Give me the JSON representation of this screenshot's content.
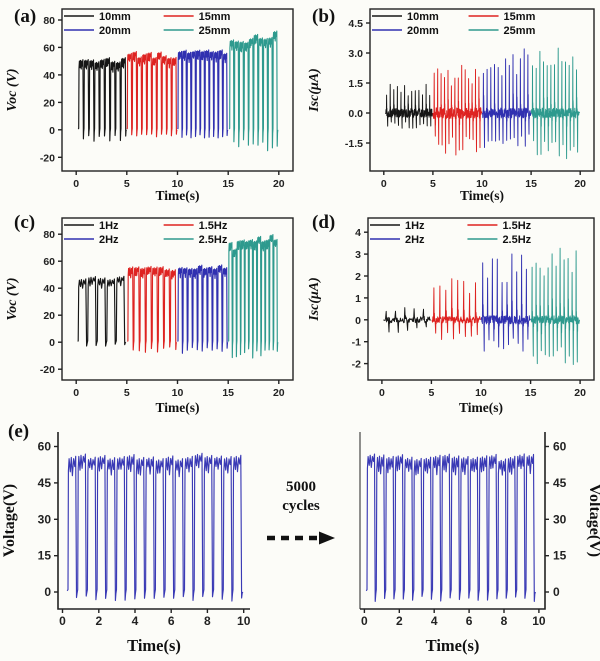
{
  "colors": {
    "black": "#161616",
    "red": "#de2321",
    "blue": "#3030b0",
    "teal": "#2e9a8e",
    "durability_blue": "#3a3ab5",
    "axis": "#222222",
    "background": "#fcfcf8"
  },
  "panels": {
    "a": {
      "letter": "(a)"
    },
    "b": {
      "letter": "(b)"
    },
    "c": {
      "letter": "(c)"
    },
    "d": {
      "letter": "(d)"
    },
    "e": {
      "letter": "(e)"
    }
  },
  "annotation": {
    "line1": "5000",
    "line2": "cycles",
    "arrow": "dashed-right-arrow"
  },
  "chart_data": [
    {
      "id": "a",
      "type": "line",
      "title": "Open-circuit voltage vs time for different displacements",
      "xlabel": "Time(s)",
      "ylabel": "Voc (V)",
      "ylabel_italic": true,
      "xlim": [
        -1.4,
        21.4
      ],
      "ylim": [
        -30,
        88
      ],
      "xticks": [
        0,
        5,
        10,
        15,
        20
      ],
      "xtick_labels": [
        "0",
        "5",
        "10",
        "15",
        "20"
      ],
      "yticks": [
        -20,
        0,
        20,
        40,
        60,
        80
      ],
      "ytick_labels": [
        "-20",
        "0",
        "20",
        "40",
        "60",
        "80"
      ],
      "frame": "box",
      "grid": false,
      "legend": {
        "position": "top-inside",
        "items": [
          {
            "label": "10mm",
            "color": "#161616"
          },
          {
            "label": "15mm",
            "color": "#de2321"
          },
          {
            "label": "20mm",
            "color": "#3030b0"
          },
          {
            "label": "25mm",
            "color": "#2e9a8e"
          }
        ]
      },
      "series": [
        {
          "name": "10mm",
          "color": "#161616",
          "kind": "voltage",
          "t0": 0.25,
          "t1": 4.95,
          "pulses": 9,
          "top": 50,
          "topvar": 2.2,
          "notch": -7,
          "seed": 11
        },
        {
          "name": "15mm",
          "color": "#de2321",
          "kind": "voltage",
          "t0": 5.05,
          "t1": 9.95,
          "pulses": 10,
          "top": 54,
          "topvar": 2.5,
          "notch": -5,
          "seed": 22
        },
        {
          "name": "20mm",
          "color": "#3030b0",
          "kind": "voltage",
          "t0": 10.05,
          "t1": 14.95,
          "pulses": 11,
          "top": 56,
          "topvar": 1.5,
          "notch": -5,
          "seed": 33
        },
        {
          "name": "25mm",
          "color": "#2e9a8e",
          "kind": "voltage",
          "t0": 15.15,
          "t1": 19.9,
          "pulses": 10,
          "top": 63,
          "top2": 69,
          "topvar": 2.2,
          "notch": -13,
          "seed": 44
        }
      ]
    },
    {
      "id": "b",
      "type": "line",
      "title": "Short-circuit current vs time for different displacements",
      "xlabel": "Time(s)",
      "ylabel": "Isc(μA)",
      "ylabel_italic": true,
      "xlim": [
        -1.4,
        21.4
      ],
      "ylim": [
        -2.9,
        5.2
      ],
      "xticks": [
        0,
        5,
        10,
        15,
        20
      ],
      "xtick_labels": [
        "0",
        "5",
        "10",
        "15",
        "20"
      ],
      "yticks": [
        -1.5,
        0,
        1.5,
        3,
        4.5
      ],
      "ytick_labels": [
        "-1.5",
        "0.0",
        "1.5",
        "3.0",
        "4.5"
      ],
      "frame": "box",
      "grid": false,
      "legend": {
        "position": "top-inside",
        "items": [
          {
            "label": "10mm",
            "color": "#161616"
          },
          {
            "label": "15mm",
            "color": "#de2321"
          },
          {
            "label": "20mm",
            "color": "#3030b0"
          },
          {
            "label": "25mm",
            "color": "#2e9a8e"
          }
        ]
      },
      "series": [
        {
          "name": "10mm",
          "color": "#161616",
          "kind": "current",
          "t0": 0.2,
          "t1": 4.95,
          "pulses": 13,
          "pos": 1.55,
          "neg": -0.8,
          "base": 0.45,
          "seed": 55
        },
        {
          "name": "15mm",
          "color": "#de2321",
          "kind": "current",
          "t0": 5.05,
          "t1": 9.95,
          "pulses": 14,
          "pos": 2.45,
          "neg": -2.1,
          "base": 0.55,
          "seed": 66
        },
        {
          "name": "20mm",
          "color": "#3030b0",
          "kind": "current",
          "t0": 10.05,
          "t1": 14.95,
          "pulses": 13,
          "pos": 3.3,
          "neg": -1.8,
          "base": 0.5,
          "seed": 77
        },
        {
          "name": "25mm",
          "color": "#2e9a8e",
          "kind": "current",
          "t0": 15.05,
          "t1": 19.9,
          "pulses": 13,
          "pos": 3.3,
          "neg": -2.3,
          "base": 0.5,
          "seed": 88
        }
      ]
    },
    {
      "id": "c",
      "type": "line",
      "title": "Open-circuit voltage vs time for different frequencies",
      "xlabel": "Time(s)",
      "ylabel": "Voc (V)",
      "ylabel_italic": true,
      "xlim": [
        -1.4,
        21.4
      ],
      "ylim": [
        -28,
        92
      ],
      "xticks": [
        0,
        5,
        10,
        15,
        20
      ],
      "xtick_labels": [
        "0",
        "5",
        "10",
        "15",
        "20"
      ],
      "yticks": [
        -20,
        0,
        20,
        40,
        60,
        80
      ],
      "ytick_labels": [
        "-20",
        "0",
        "20",
        "40",
        "60",
        "80"
      ],
      "frame": "box",
      "grid": false,
      "legend": {
        "position": "top-inside",
        "items": [
          {
            "label": "1Hz",
            "color": "#161616"
          },
          {
            "label": "1.5Hz",
            "color": "#de2321"
          },
          {
            "label": "2Hz",
            "color": "#3030b0"
          },
          {
            "label": "2.5Hz",
            "color": "#2e9a8e"
          }
        ]
      },
      "series": [
        {
          "name": "1Hz",
          "color": "#161616",
          "kind": "voltage",
          "t0": 0.2,
          "t1": 4.9,
          "pulses": 5,
          "top": 47,
          "topvar": 1.5,
          "notch": -2.5,
          "seed": 101
        },
        {
          "name": "1.5Hz",
          "color": "#de2321",
          "kind": "voltage",
          "t0": 5.1,
          "t1": 9.9,
          "pulses": 8,
          "top": 54,
          "topvar": 1.8,
          "notch": -6,
          "seed": 102
        },
        {
          "name": "2Hz",
          "color": "#3030b0",
          "kind": "voltage",
          "t0": 10.05,
          "t1": 14.95,
          "pulses": 10,
          "top": 55,
          "topvar": 1.5,
          "notch": -6.5,
          "seed": 103
        },
        {
          "name": "2.5Hz",
          "color": "#2e9a8e",
          "kind": "voltage",
          "t0": 15.05,
          "t1": 19.9,
          "pulses": 12,
          "top": 70,
          "top2": 78,
          "topvar": 3,
          "notch": -9,
          "seed": 104
        }
      ]
    },
    {
      "id": "d",
      "type": "line",
      "title": "Short-circuit current vs time for different frequencies",
      "xlabel": "Time(s)",
      "ylabel": "Isc(μA)",
      "ylabel_italic": true,
      "xlim": [
        -1.4,
        21.4
      ],
      "ylim": [
        -2.75,
        4.65
      ],
      "xticks": [
        0,
        5,
        10,
        15,
        20
      ],
      "xtick_labels": [
        "0",
        "5",
        "10",
        "15",
        "20"
      ],
      "yticks": [
        -2,
        -1,
        0,
        1,
        2,
        3,
        4
      ],
      "ytick_labels": [
        "-2",
        "-1",
        "0",
        "1",
        "2",
        "3",
        "4"
      ],
      "frame": "box",
      "grid": false,
      "legend": {
        "position": "top-inside",
        "items": [
          {
            "label": "1Hz",
            "color": "#161616"
          },
          {
            "label": "1.5Hz",
            "color": "#de2321"
          },
          {
            "label": "2Hz",
            "color": "#3030b0"
          },
          {
            "label": "2.5Hz",
            "color": "#2e9a8e"
          }
        ]
      },
      "series": [
        {
          "name": "1Hz",
          "color": "#161616",
          "kind": "current",
          "t0": 0.2,
          "t1": 4.9,
          "pulses": 5,
          "pos": 0.68,
          "neg": -0.58,
          "base": 0.28,
          "seed": 201
        },
        {
          "name": "1.5Hz",
          "color": "#de2321",
          "kind": "current",
          "t0": 5.1,
          "t1": 9.9,
          "pulses": 8,
          "pos": 2.05,
          "neg": -0.95,
          "base": 0.3,
          "seed": 202
        },
        {
          "name": "2Hz",
          "color": "#3030b0",
          "kind": "current",
          "t0": 10.05,
          "t1": 14.95,
          "pulses": 10,
          "pos": 3.05,
          "neg": -1.45,
          "base": 0.38,
          "seed": 203
        },
        {
          "name": "2.5Hz",
          "color": "#2e9a8e",
          "kind": "current",
          "t0": 15.05,
          "t1": 19.9,
          "pulses": 12,
          "pos": 3.5,
          "neg": -2.25,
          "base": 0.38,
          "seed": 204
        }
      ]
    },
    {
      "id": "e1",
      "type": "line",
      "title": "Durability test - before 5000 cycles",
      "xlabel": "Time(s)",
      "ylabel": "Voltage(V)",
      "ylabel_italic": false,
      "xlim": [
        -0.25,
        10.35
      ],
      "ylim": [
        -7,
        66
      ],
      "xticks": [
        0,
        2,
        4,
        6,
        8,
        10
      ],
      "xtick_labels": [
        "0",
        "2",
        "4",
        "6",
        "8",
        "10"
      ],
      "yticks": [
        0,
        15,
        30,
        45,
        60
      ],
      "ytick_labels": [
        "0",
        "15",
        "30",
        "45",
        "60"
      ],
      "frame": "axes-left",
      "grid": false,
      "legend": null,
      "series": [
        {
          "name": "voltage",
          "color": "#3a3ab5",
          "kind": "voltage",
          "t0": 0.3,
          "t1": 9.95,
          "pulses": 18,
          "top": 55,
          "topvar": 1.3,
          "notch": -3,
          "seed": 301
        }
      ]
    },
    {
      "id": "e2",
      "type": "line",
      "title": "Durability test - after 5000 cycles",
      "xlabel": "Time(s)",
      "ylabel": "Voltage(V)",
      "ylabel_italic": false,
      "xlim": [
        -0.25,
        10.35
      ],
      "ylim": [
        -7,
        66
      ],
      "xticks": [
        0,
        2,
        4,
        6,
        8,
        10
      ],
      "xtick_labels": [
        "0",
        "2",
        "4",
        "6",
        "8",
        "10"
      ],
      "yticks": [
        0,
        15,
        30,
        45,
        60
      ],
      "ytick_labels": [
        "0",
        "15",
        "30",
        "45",
        "60"
      ],
      "frame": "axes-right",
      "grid": false,
      "legend": null,
      "series": [
        {
          "name": "voltage",
          "color": "#3a3ab5",
          "kind": "voltage",
          "t0": 0.15,
          "t1": 9.8,
          "pulses": 18,
          "top": 55,
          "topvar": 1.3,
          "notch": -3,
          "seed": 302
        }
      ]
    }
  ]
}
